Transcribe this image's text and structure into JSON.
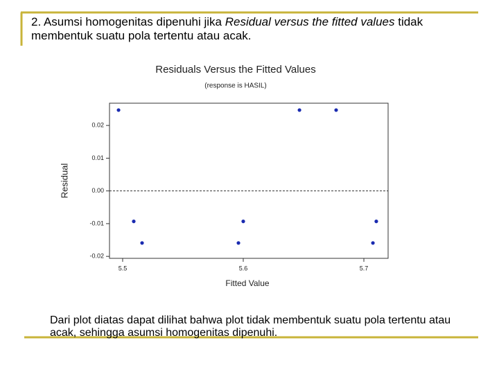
{
  "heading": {
    "lead": "2. Asumsi homogenitas dipenuhi jika",
    "emphasis": "Residual versus the fitted values",
    "rest": "tidak membentuk suatu pola tertentu atau acak."
  },
  "chart_data": {
    "type": "scatter",
    "title": "Residuals Versus the Fitted Values",
    "subtitle": "(response is HASIL)",
    "x_label": "Fitted Value",
    "y_label": "Residual",
    "x": [
      5.4966,
      5.5092,
      5.5161,
      5.596,
      5.6,
      5.6466,
      5.677,
      5.7075,
      5.7103
    ],
    "values": [
      0.0247,
      -0.0093,
      -0.0159,
      -0.0159,
      -0.0093,
      0.0247,
      0.0247,
      -0.0159,
      -0.0093
    ],
    "color": "#1a2bb0",
    "xlim": [
      5.4891,
      5.7201
    ],
    "ylim": [
      -0.0206,
      0.0268
    ],
    "xticks": [
      5.5,
      5.6,
      5.7
    ],
    "yticks": [
      -0.02,
      -0.01,
      {
        "value": 0,
        "label": "0.00"
      },
      0.01,
      0.02
    ],
    "reference_line": 0
  },
  "conclusion": "Dari plot diatas dapat dilihat bahwa plot tidak membentuk suatu pola tertentu atau acak, sehingga asumsi homogenitas dipenuhi."
}
